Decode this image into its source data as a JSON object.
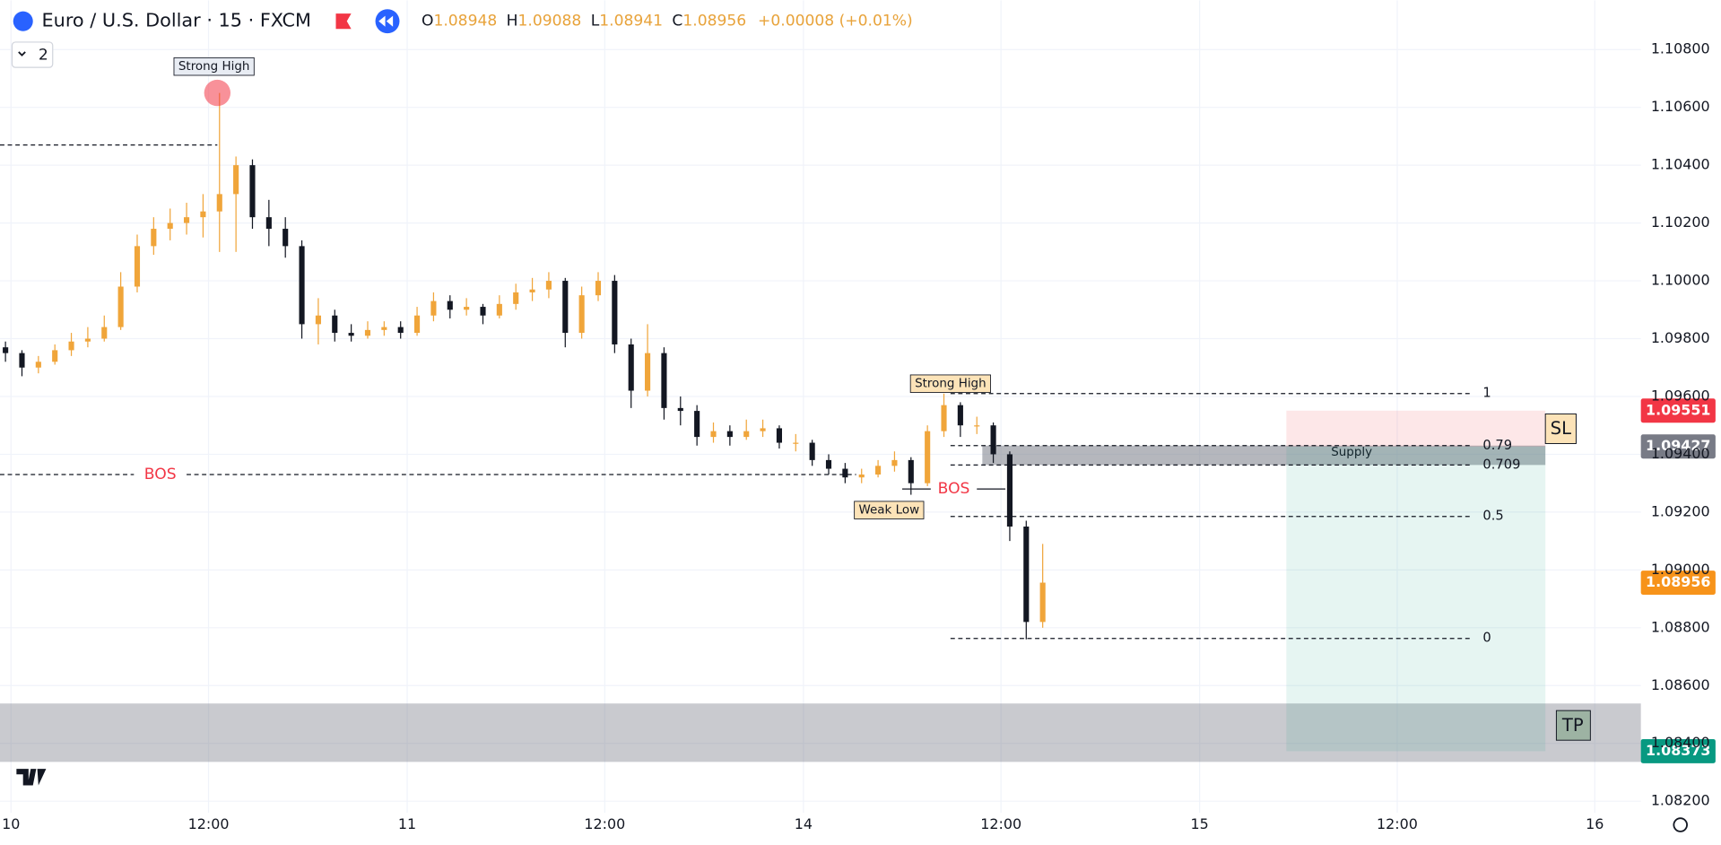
{
  "chart_data": {
    "type": "candlestick",
    "title": "Euro / U.S. Dollar · 15 · FXCM",
    "ohlc_labels": [
      "O",
      "H",
      "L",
      "C"
    ],
    "ohlc": [
      1.08948,
      1.09088,
      1.08941,
      1.08956
    ],
    "change": "+0.00008 (+0.01%)",
    "indicator_count": 2,
    "up_color": "#f0a53a",
    "down_color": "#131722",
    "candles": [
      [
        1.0977,
        1.0979,
        1.0972,
        1.0975
      ],
      [
        1.0975,
        1.0976,
        1.0967,
        1.097
      ],
      [
        1.097,
        1.0974,
        1.0968,
        1.0972
      ],
      [
        1.0972,
        1.0978,
        1.0971,
        1.0976
      ],
      [
        1.0976,
        1.0982,
        1.0974,
        1.0979
      ],
      [
        1.0979,
        1.0984,
        1.0977,
        1.098
      ],
      [
        1.098,
        1.0988,
        1.0979,
        1.0984
      ],
      [
        1.0984,
        1.1003,
        1.0983,
        1.0998
      ],
      [
        1.0998,
        1.1016,
        1.0996,
        1.1012
      ],
      [
        1.1012,
        1.1022,
        1.1009,
        1.1018
      ],
      [
        1.1018,
        1.1025,
        1.1014,
        1.102
      ],
      [
        1.102,
        1.1027,
        1.1016,
        1.1022
      ],
      [
        1.1022,
        1.103,
        1.1015,
        1.1024
      ],
      [
        1.1024,
        1.1065,
        1.101,
        1.103
      ],
      [
        1.103,
        1.1043,
        1.101,
        1.104
      ],
      [
        1.104,
        1.1042,
        1.1018,
        1.1022
      ],
      [
        1.1022,
        1.1028,
        1.1012,
        1.1018
      ],
      [
        1.1018,
        1.1022,
        1.1008,
        1.1012
      ],
      [
        1.1012,
        1.1014,
        1.098,
        1.0985
      ],
      [
        1.0985,
        1.0994,
        1.0978,
        1.0988
      ],
      [
        1.0988,
        1.099,
        1.0979,
        1.0982
      ],
      [
        1.0982,
        1.0985,
        1.0979,
        1.0981
      ],
      [
        1.0981,
        1.0986,
        1.098,
        1.0983
      ],
      [
        1.0983,
        1.0986,
        1.0981,
        1.0984
      ],
      [
        1.0984,
        1.0986,
        1.098,
        1.0982
      ],
      [
        1.0982,
        1.0991,
        1.0981,
        1.0988
      ],
      [
        1.0988,
        1.0996,
        1.0986,
        1.0993
      ],
      [
        1.0993,
        1.0995,
        1.0987,
        1.099
      ],
      [
        1.099,
        1.0994,
        1.0988,
        1.0991
      ],
      [
        1.0991,
        1.0992,
        1.0985,
        1.0988
      ],
      [
        1.0988,
        1.0995,
        1.0987,
        1.0992
      ],
      [
        1.0992,
        1.0999,
        1.099,
        1.0996
      ],
      [
        1.0996,
        1.1001,
        1.0993,
        1.0997
      ],
      [
        1.0997,
        1.1003,
        1.0994,
        1.1
      ],
      [
        1.1,
        1.1001,
        1.0977,
        1.0982
      ],
      [
        1.0982,
        1.0998,
        1.098,
        1.0995
      ],
      [
        1.0995,
        1.1003,
        1.0993,
        1.1
      ],
      [
        1.1,
        1.1002,
        1.0975,
        1.0978
      ],
      [
        1.0978,
        1.098,
        1.0956,
        1.0962
      ],
      [
        1.0962,
        1.0985,
        1.096,
        1.0975
      ],
      [
        1.0975,
        1.0977,
        1.0952,
        1.0956
      ],
      [
        1.0956,
        1.096,
        1.095,
        1.0955
      ],
      [
        1.0955,
        1.0957,
        1.0943,
        1.0946
      ],
      [
        1.0946,
        1.0951,
        1.0944,
        1.0948
      ],
      [
        1.0948,
        1.095,
        1.0943,
        1.0946
      ],
      [
        1.0946,
        1.0952,
        1.0945,
        1.0948
      ],
      [
        1.0948,
        1.0952,
        1.0946,
        1.0949
      ],
      [
        1.0949,
        1.095,
        1.0942,
        1.0944
      ],
      [
        1.0944,
        1.0947,
        1.0941,
        1.0944
      ],
      [
        1.0944,
        1.0945,
        1.0936,
        1.0938
      ],
      [
        1.0938,
        1.094,
        1.0933,
        1.0935
      ],
      [
        1.0935,
        1.0937,
        1.093,
        1.0932
      ],
      [
        1.0932,
        1.0935,
        1.093,
        1.0933
      ],
      [
        1.0933,
        1.0938,
        1.0932,
        1.0936
      ],
      [
        1.0936,
        1.0941,
        1.0934,
        1.0938
      ],
      [
        1.0938,
        1.0939,
        1.0926,
        1.093
      ],
      [
        1.093,
        1.095,
        1.0929,
        1.0948
      ],
      [
        1.0948,
        1.0961,
        1.0946,
        1.0957
      ],
      [
        1.0957,
        1.0958,
        1.0946,
        1.095
      ],
      [
        1.095,
        1.0953,
        1.0947,
        1.095
      ],
      [
        1.095,
        1.0951,
        1.0937,
        1.094
      ],
      [
        1.094,
        1.0941,
        1.091,
        1.0915
      ],
      [
        1.0915,
        1.0917,
        1.0876,
        1.0882
      ],
      [
        1.0882,
        1.0909,
        1.088,
        1.08956
      ]
    ],
    "ylim": [
      1.0816,
      1.1097
    ],
    "yticks": [
      {
        "value": 1.082,
        "label": "1.08200"
      },
      {
        "value": 1.084,
        "label": "1.08400"
      },
      {
        "value": 1.086,
        "label": "1.08600"
      },
      {
        "value": 1.088,
        "label": "1.08800"
      },
      {
        "value": 1.09,
        "label": "1.09000"
      },
      {
        "value": 1.092,
        "label": "1.09200"
      },
      {
        "value": 1.094,
        "label": "1.09400"
      },
      {
        "value": 1.096,
        "label": "1.09600"
      },
      {
        "value": 1.098,
        "label": "1.09800"
      },
      {
        "value": 1.1,
        "label": "1.10000"
      },
      {
        "value": 1.102,
        "label": "1.10200"
      },
      {
        "value": 1.104,
        "label": "1.10400"
      },
      {
        "value": 1.106,
        "label": "1.10600"
      },
      {
        "value": 1.108,
        "label": "1.10800"
      }
    ],
    "x_labels": [
      "10",
      "12:00",
      "11",
      "12:00",
      "14",
      "12:00",
      "15",
      "12:00",
      "16"
    ],
    "grid": true,
    "annotations": [
      {
        "text": "Strong High",
        "price": 1.1047
      },
      {
        "text": "BOS",
        "price": 1.0933
      },
      {
        "text": "Strong High",
        "price": 1.0961
      },
      {
        "text": "Weak Low",
        "price": 1.0926
      },
      {
        "text": "BOS",
        "price": 1.0928
      }
    ],
    "fib_levels": [
      {
        "label": "1",
        "price": 1.0961
      },
      {
        "label": "0.79",
        "price": 1.0943
      },
      {
        "label": "0.709",
        "price": 1.09363
      },
      {
        "label": "0.5",
        "price": 1.09185
      },
      {
        "label": "0",
        "price": 1.08763
      }
    ],
    "zones": [
      {
        "label": "Supply",
        "top": 1.0943,
        "bottom": 1.09363
      },
      {
        "top": 1.08538,
        "bottom": 1.08336
      }
    ],
    "position": {
      "stop_label": "SL",
      "target_label": "TP",
      "stop": 1.09551,
      "entry": 1.09427,
      "target": 1.08373
    },
    "price_tags": [
      {
        "value": 1.09551,
        "color": "#f23645"
      },
      {
        "value": 1.09427,
        "color": "#787b86"
      },
      {
        "value": 1.08956,
        "color": "#f7931a"
      },
      {
        "value": 1.08373,
        "color": "#089981"
      }
    ]
  }
}
